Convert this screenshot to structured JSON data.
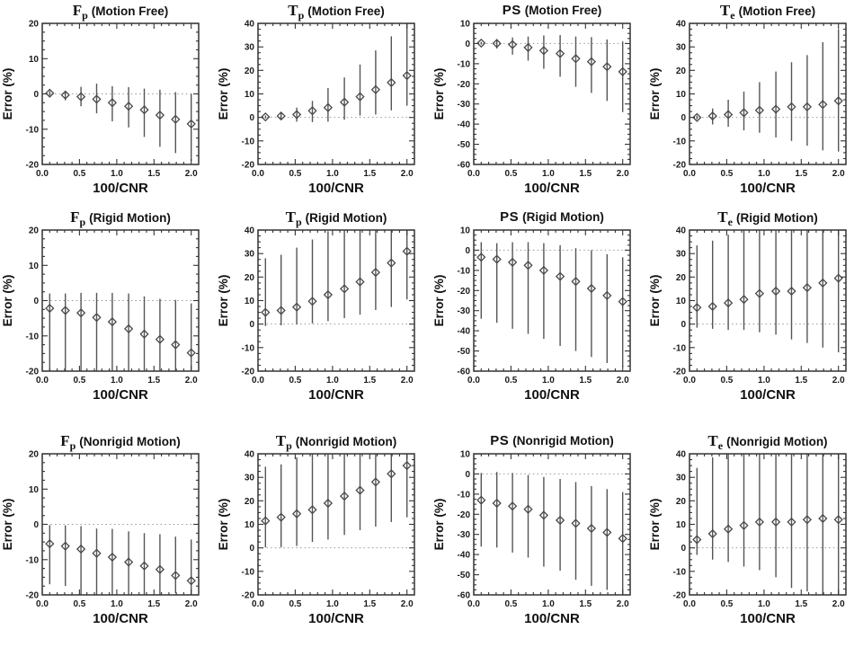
{
  "figure": {
    "layout": "3 rows x 4 columns of error-bar plots",
    "xlabel": "100/CNR",
    "ylabel": "Error (%)",
    "colors": {
      "axis": "#333333",
      "error_bar": "#555555",
      "marker": "#474747",
      "zero_line": "#999999",
      "background": "#ffffff",
      "text": "#1a1a1a"
    }
  },
  "chart_data": [
    {
      "type": "errorbar",
      "marker": "diamond",
      "param": "F",
      "param_sub": "p",
      "condition": "(Motion Free)",
      "xlabel": "100/CNR",
      "ylabel": "Error (%)",
      "xlim": [
        0,
        2.1
      ],
      "xticks": [
        0,
        0.5,
        1,
        1.5,
        2
      ],
      "ylim": [
        -20,
        20
      ],
      "yticks": [
        -20,
        -10,
        0,
        10,
        20
      ],
      "zero_line": true,
      "x": [
        0.1,
        0.31,
        0.52,
        0.73,
        0.94,
        1.16,
        1.37,
        1.58,
        1.79,
        2.0
      ],
      "y": [
        0.2,
        -0.3,
        -0.8,
        -1.5,
        -2.5,
        -3.5,
        -4.5,
        -6,
        -7.2,
        -8.5
      ],
      "bar_low": [
        -0.5,
        -1.8,
        -3.5,
        -5.5,
        -7.8,
        -9.5,
        -12.2,
        -15,
        -16.8,
        -19
      ],
      "bar_high": [
        0.8,
        0.9,
        2,
        2.9,
        2.2,
        1.9,
        1.5,
        1.2,
        0.5,
        0
      ]
    },
    {
      "type": "errorbar",
      "marker": "diamond",
      "param": "T",
      "param_sub": "p",
      "condition": "(Motion Free)",
      "xlabel": "100/CNR",
      "ylabel": "Error (%)",
      "xlim": [
        0,
        2.1
      ],
      "xticks": [
        0,
        0.5,
        1,
        1.5,
        2
      ],
      "ylim": [
        -20,
        40
      ],
      "yticks": [
        -20,
        -10,
        0,
        10,
        20,
        30,
        40
      ],
      "zero_line": true,
      "x": [
        0.1,
        0.31,
        0.52,
        0.73,
        0.94,
        1.16,
        1.37,
        1.58,
        1.79,
        2.0
      ],
      "y": [
        0.2,
        0.6,
        1.2,
        2.8,
        4.2,
        6.5,
        8.8,
        11.8,
        14.8,
        17.8
      ],
      "bar_low": [
        -0.4,
        -1,
        -1.8,
        -2,
        -1.8,
        -1,
        0.8,
        1.2,
        3,
        5
      ],
      "bar_high": [
        0.8,
        2.2,
        4.2,
        7,
        12.5,
        17,
        22.5,
        28.5,
        34.5,
        40
      ]
    },
    {
      "type": "errorbar",
      "marker": "diamond",
      "param": "PS",
      "param_sub": "",
      "condition": "(Motion Free)",
      "xlabel": "100/CNR",
      "ylabel": "Error (%)",
      "xlim": [
        0,
        2.1
      ],
      "xticks": [
        0,
        0.5,
        1,
        1.5,
        2
      ],
      "ylim": [
        -60,
        10
      ],
      "yticks": [
        -60,
        -50,
        -40,
        -30,
        -20,
        -10,
        0,
        10
      ],
      "zero_line": true,
      "x": [
        0.1,
        0.31,
        0.52,
        0.73,
        0.94,
        1.16,
        1.37,
        1.58,
        1.79,
        2.0
      ],
      "y": [
        0.2,
        0,
        -0.5,
        -2,
        -3.5,
        -5,
        -7.5,
        -9,
        -11.5,
        -14
      ],
      "bar_low": [
        -0.5,
        -2.5,
        -5.5,
        -8.5,
        -12.5,
        -16.5,
        -21.5,
        -24.5,
        -28.5,
        -34
      ],
      "bar_high": [
        0.8,
        2.2,
        3,
        3.5,
        4,
        4.2,
        3.5,
        3.2,
        2,
        1
      ]
    },
    {
      "type": "errorbar",
      "marker": "diamond",
      "param": "T",
      "param_sub": "e",
      "condition": "(Motion Free)",
      "xlabel": "100/CNR",
      "ylabel": "Error (%)",
      "xlim": [
        0,
        2.1
      ],
      "xticks": [
        0,
        0.5,
        1,
        1.5,
        2
      ],
      "ylim": [
        -20,
        40
      ],
      "yticks": [
        -20,
        -10,
        0,
        10,
        20,
        30,
        40
      ],
      "zero_line": true,
      "x": [
        0.1,
        0.31,
        0.52,
        0.73,
        0.94,
        1.16,
        1.37,
        1.58,
        1.79,
        2.0
      ],
      "y": [
        0,
        0.6,
        1.2,
        2,
        3,
        3.5,
        4.5,
        4.5,
        5.5,
        7
      ],
      "bar_low": [
        -0.8,
        -3,
        -4,
        -5.5,
        -6.5,
        -8.5,
        -10,
        -12,
        -14,
        -14.5
      ],
      "bar_high": [
        0.8,
        3.8,
        7.5,
        11,
        15,
        19.5,
        23.5,
        26.5,
        32,
        37.5
      ]
    },
    {
      "type": "errorbar",
      "marker": "diamond",
      "param": "F",
      "param_sub": "p",
      "condition": "(Rigid Motion)",
      "xlabel": "100/CNR",
      "ylabel": "Error (%)",
      "xlim": [
        0,
        2.1
      ],
      "xticks": [
        0,
        0.5,
        1,
        1.5,
        2
      ],
      "ylim": [
        -20,
        20
      ],
      "yticks": [
        -20,
        -10,
        0,
        10,
        20
      ],
      "zero_line": true,
      "x": [
        0.1,
        0.31,
        0.52,
        0.73,
        0.94,
        1.16,
        1.37,
        1.58,
        1.79,
        2.0
      ],
      "y": [
        -2.2,
        -2.8,
        -3.5,
        -4.8,
        -6,
        -8,
        -9.5,
        -11,
        -12.5,
        -14.8
      ],
      "bar_low": [
        -20,
        -20,
        -20,
        -20,
        -20,
        -20,
        -20,
        -20,
        -20,
        -20
      ],
      "bar_high": [
        2,
        2,
        2.2,
        2.2,
        2.2,
        2,
        1.2,
        0.5,
        0.2,
        -0.8
      ]
    },
    {
      "type": "errorbar",
      "marker": "diamond",
      "param": "T",
      "param_sub": "p",
      "condition": "(Rigid Motion)",
      "xlabel": "100/CNR",
      "ylabel": "Error (%)",
      "xlim": [
        0,
        2.1
      ],
      "xticks": [
        0,
        0.5,
        1,
        1.5,
        2
      ],
      "ylim": [
        -20,
        40
      ],
      "yticks": [
        -20,
        -10,
        0,
        10,
        20,
        30,
        40
      ],
      "zero_line": true,
      "x": [
        0.1,
        0.31,
        0.52,
        0.73,
        0.94,
        1.16,
        1.37,
        1.58,
        1.79,
        2.0
      ],
      "y": [
        5,
        5.8,
        7.2,
        9.7,
        12.5,
        15,
        18,
        22,
        26,
        31
      ],
      "bar_low": [
        -0.8,
        -0.5,
        -0.2,
        0.3,
        1.3,
        2.5,
        4,
        6,
        7.3,
        10.5
      ],
      "bar_high": [
        28,
        29.5,
        32.5,
        36,
        39.5,
        40,
        40,
        40,
        40,
        40
      ]
    },
    {
      "type": "errorbar",
      "marker": "diamond",
      "param": "PS",
      "param_sub": "",
      "condition": "(Rigid Motion)",
      "xlabel": "100/CNR",
      "ylabel": "Error (%)",
      "xlim": [
        0,
        2.1
      ],
      "xticks": [
        0,
        0.5,
        1,
        1.5,
        2
      ],
      "ylim": [
        -60,
        10
      ],
      "yticks": [
        -60,
        -50,
        -40,
        -30,
        -20,
        -10,
        0,
        10
      ],
      "zero_line": true,
      "x": [
        0.1,
        0.31,
        0.52,
        0.73,
        0.94,
        1.16,
        1.37,
        1.58,
        1.79,
        2.0
      ],
      "y": [
        -3.5,
        -4.5,
        -6,
        -7.5,
        -10,
        -13,
        -15.5,
        -19,
        -22.5,
        -25.5
      ],
      "bar_low": [
        -34,
        -36,
        -39,
        -41.5,
        -44,
        -47.5,
        -50,
        -53,
        -56,
        -58
      ],
      "bar_high": [
        4,
        3.5,
        4,
        4,
        3.5,
        2.5,
        1,
        0,
        -2,
        -3.5
      ]
    },
    {
      "type": "errorbar",
      "marker": "diamond",
      "param": "T",
      "param_sub": "e",
      "condition": "(Rigid Motion)",
      "xlabel": "100/CNR",
      "ylabel": "Error (%)",
      "xlim": [
        0,
        2.1
      ],
      "xticks": [
        0,
        0.5,
        1,
        1.5,
        2
      ],
      "ylim": [
        -20,
        40
      ],
      "yticks": [
        -20,
        -10,
        0,
        10,
        20,
        30,
        40
      ],
      "zero_line": true,
      "x": [
        0.1,
        0.31,
        0.52,
        0.73,
        0.94,
        1.16,
        1.37,
        1.58,
        1.79,
        2.0
      ],
      "y": [
        7,
        7.5,
        9,
        10.5,
        13,
        14,
        14,
        15.5,
        17.5,
        19.5
      ],
      "bar_low": [
        -1.5,
        -2,
        -2.5,
        -2.5,
        -3.5,
        -4.5,
        -6.5,
        -8,
        -10,
        -12
      ],
      "bar_high": [
        33.5,
        35.5,
        38,
        40,
        40,
        40,
        40,
        40,
        40,
        40
      ]
    },
    {
      "type": "errorbar",
      "marker": "diamond",
      "param": "F",
      "param_sub": "p",
      "condition": "(Nonrigid Motion)",
      "xlabel": "100/CNR",
      "ylabel": "Error (%)",
      "xlim": [
        0,
        2.1
      ],
      "xticks": [
        0,
        0.5,
        1,
        1.5,
        2
      ],
      "ylim": [
        -20,
        20
      ],
      "yticks": [
        -20,
        -10,
        0,
        10,
        20
      ],
      "zero_line": true,
      "x": [
        0.1,
        0.31,
        0.52,
        0.73,
        0.94,
        1.16,
        1.37,
        1.58,
        1.79,
        2.0
      ],
      "y": [
        -5.5,
        -6.2,
        -7,
        -8.2,
        -9.3,
        -10.7,
        -11.8,
        -12.8,
        -14.5,
        -16
      ],
      "bar_low": [
        -17,
        -17.5,
        -20,
        -20,
        -20,
        -20,
        -20,
        -20,
        -19.5,
        -20
      ],
      "bar_high": [
        -0.2,
        -0.3,
        -0.5,
        -1.2,
        -1.3,
        -2,
        -2.5,
        -2.8,
        -3.5,
        -4.3
      ]
    },
    {
      "type": "errorbar",
      "marker": "diamond",
      "param": "T",
      "param_sub": "p",
      "condition": "(Nonrigid Motion)",
      "xlabel": "100/CNR",
      "ylabel": "Error (%)",
      "xlim": [
        0,
        2.1
      ],
      "xticks": [
        0,
        0.5,
        1,
        1.5,
        2
      ],
      "ylim": [
        -20,
        40
      ],
      "yticks": [
        -20,
        -10,
        0,
        10,
        20,
        30,
        40
      ],
      "zero_line": true,
      "x": [
        0.1,
        0.31,
        0.52,
        0.73,
        0.94,
        1.16,
        1.37,
        1.58,
        1.79,
        2.0
      ],
      "y": [
        11.5,
        13,
        14.5,
        16.2,
        19,
        22,
        24.5,
        28,
        31.5,
        35
      ],
      "bar_low": [
        0.2,
        0.3,
        0.8,
        2.5,
        3.5,
        5.5,
        7.5,
        9,
        11,
        13
      ],
      "bar_high": [
        34.5,
        35.5,
        38.5,
        40,
        40,
        40,
        40,
        40,
        40,
        40
      ]
    },
    {
      "type": "errorbar",
      "marker": "diamond",
      "param": "PS",
      "param_sub": "",
      "condition": "(Nonrigid Motion)",
      "xlabel": "100/CNR",
      "ylabel": "Error (%)",
      "xlim": [
        0,
        2.1
      ],
      "xticks": [
        0,
        0.5,
        1,
        1.5,
        2
      ],
      "ylim": [
        -60,
        10
      ],
      "yticks": [
        -60,
        -50,
        -40,
        -30,
        -20,
        -10,
        0,
        10
      ],
      "zero_line": true,
      "x": [
        0.1,
        0.31,
        0.52,
        0.73,
        0.94,
        1.16,
        1.37,
        1.58,
        1.79,
        2.0
      ],
      "y": [
        -13,
        -14.5,
        -16,
        -17.5,
        -20.5,
        -23,
        -24.5,
        -27,
        -29,
        -32
      ],
      "bar_low": [
        -36,
        -36.5,
        -39,
        -41.5,
        -46,
        -48,
        -52.5,
        -55.5,
        -57.5,
        -60
      ],
      "bar_high": [
        0.5,
        1,
        0.5,
        -0.5,
        -1.5,
        -2.5,
        -4,
        -6,
        -7.5,
        -9
      ]
    },
    {
      "type": "errorbar",
      "marker": "diamond",
      "param": "T",
      "param_sub": "e",
      "condition": "(Nonrigid Motion)",
      "xlabel": "100/CNR",
      "ylabel": "Error (%)",
      "xlim": [
        0,
        2.1
      ],
      "xticks": [
        0,
        0.5,
        1,
        1.5,
        2
      ],
      "ylim": [
        -20,
        40
      ],
      "yticks": [
        -20,
        -10,
        0,
        10,
        20,
        30,
        40
      ],
      "zero_line": true,
      "x": [
        0.1,
        0.31,
        0.52,
        0.73,
        0.94,
        1.16,
        1.37,
        1.58,
        1.79,
        2.0
      ],
      "y": [
        3.5,
        6,
        8,
        9.5,
        11,
        11,
        11,
        12,
        12.5,
        12
      ],
      "bar_low": [
        -3,
        -5,
        -6,
        -8,
        -9.5,
        -12.5,
        -17,
        -18.5,
        -20,
        -20
      ],
      "bar_high": [
        34,
        38.5,
        40,
        40,
        40,
        40,
        40,
        40,
        40,
        40
      ]
    }
  ]
}
